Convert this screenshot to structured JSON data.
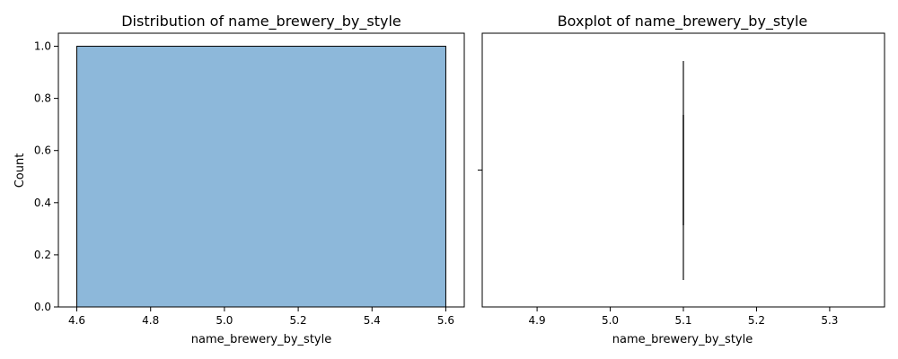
{
  "chart_data": [
    {
      "type": "bar",
      "title": "Distribution of name_brewery_by_style",
      "xlabel": "name_brewery_by_style",
      "ylabel": "Count",
      "xlim": [
        4.55,
        5.65
      ],
      "ylim": [
        0,
        1.05
      ],
      "xticks": [
        "4.6",
        "4.8",
        "5.0",
        "5.2",
        "5.4",
        "5.6"
      ],
      "yticks": [
        "0.0",
        "0.2",
        "0.4",
        "0.6",
        "0.8",
        "1.0"
      ],
      "bins": [
        {
          "start": 4.6,
          "end": 5.6,
          "count": 1
        }
      ],
      "bar_color": "#8db8da",
      "edge_color": "#000000",
      "grid": false
    },
    {
      "type": "boxplot",
      "title": "Boxplot of name_brewery_by_style",
      "xlabel": "name_brewery_by_style",
      "ylabel": "",
      "xlim": [
        4.825,
        5.375
      ],
      "xticks": [
        "4.9",
        "5.0",
        "5.1",
        "5.2",
        "5.3"
      ],
      "values": [
        5.1
      ],
      "median": 5.1,
      "q1": 5.1,
      "q3": 5.1,
      "whisker_low": 5.1,
      "whisker_high": 5.1,
      "line_color": "#3f3f3f",
      "grid": false
    }
  ]
}
